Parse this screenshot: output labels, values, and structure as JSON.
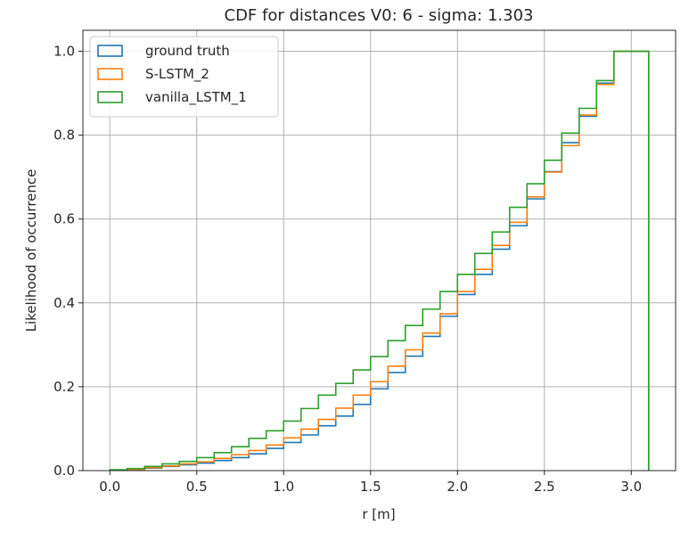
{
  "chart_data": {
    "type": "line",
    "step": true,
    "title": "CDF for distances V0: 6 - sigma: 1.303",
    "xlabel": "r [m]",
    "ylabel": "Likelihood of occurrence",
    "xlim": [
      -0.155,
      3.255
    ],
    "ylim": [
      0.0,
      1.05
    ],
    "grid": true,
    "legend_position": "upper-left",
    "x_ticks": [
      "0.0",
      "0.5",
      "1.0",
      "1.5",
      "2.0",
      "2.5",
      "3.0"
    ],
    "x_tick_values": [
      0.0,
      0.5,
      1.0,
      1.5,
      2.0,
      2.5,
      3.0
    ],
    "y_ticks": [
      "0.0",
      "0.2",
      "0.4",
      "0.6",
      "0.8",
      "1.0"
    ],
    "y_tick_values": [
      0.0,
      0.2,
      0.4,
      0.6,
      0.8,
      1.0
    ],
    "bin_edges": [
      0.0,
      0.1,
      0.2,
      0.3,
      0.4,
      0.5,
      0.6,
      0.7,
      0.8,
      0.9,
      1.0,
      1.1,
      1.2,
      1.3,
      1.4,
      1.5,
      1.6,
      1.7,
      1.8,
      1.9,
      2.0,
      2.1,
      2.2,
      2.3,
      2.4,
      2.5,
      2.6,
      2.7,
      2.8,
      2.9,
      3.0,
      3.1
    ],
    "series": [
      {
        "name": "ground truth",
        "color": "#1f77b4",
        "values": [
          0.001,
          0.003,
          0.006,
          0.01,
          0.014,
          0.018,
          0.024,
          0.031,
          0.04,
          0.053,
          0.067,
          0.085,
          0.107,
          0.13,
          0.158,
          0.195,
          0.234,
          0.273,
          0.32,
          0.368,
          0.42,
          0.468,
          0.528,
          0.584,
          0.648,
          0.713,
          0.782,
          0.845,
          0.924,
          1.0,
          1.0
        ]
      },
      {
        "name": "S-LSTM_2",
        "color": "#ff7f0e",
        "values": [
          0.001,
          0.003,
          0.007,
          0.011,
          0.016,
          0.021,
          0.029,
          0.038,
          0.048,
          0.061,
          0.078,
          0.099,
          0.122,
          0.149,
          0.18,
          0.212,
          0.249,
          0.288,
          0.328,
          0.374,
          0.427,
          0.48,
          0.537,
          0.592,
          0.653,
          0.712,
          0.775,
          0.848,
          0.921,
          1.0,
          1.0
        ]
      },
      {
        "name": "vanilla_LSTM_1",
        "color": "#2ca02c",
        "values": [
          0.002,
          0.005,
          0.01,
          0.016,
          0.022,
          0.031,
          0.043,
          0.057,
          0.077,
          0.095,
          0.118,
          0.148,
          0.18,
          0.208,
          0.24,
          0.272,
          0.31,
          0.346,
          0.385,
          0.427,
          0.468,
          0.518,
          0.569,
          0.628,
          0.684,
          0.74,
          0.805,
          0.864,
          0.93,
          1.0,
          1.0
        ]
      }
    ]
  }
}
